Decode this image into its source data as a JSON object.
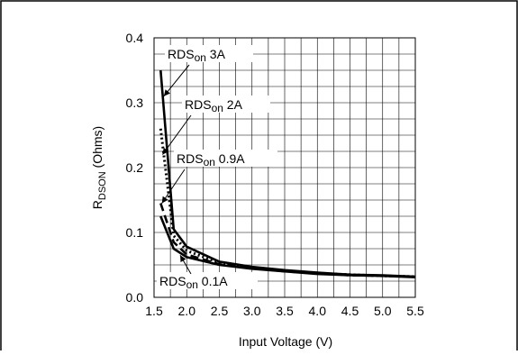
{
  "chart_data": {
    "type": "line",
    "title": "",
    "xlabel": "Input Voltage (V)",
    "ylabel": "RDSON (Ohms)",
    "ylabel_main": "R",
    "ylabel_sub": "DSON",
    "ylabel_rest": " (Ohms)",
    "xlim": [
      1.5,
      5.5
    ],
    "ylim": [
      0,
      0.4
    ],
    "x_ticks": [
      "1.5",
      "2.0",
      "2.5",
      "3.0",
      "3.5",
      "4.0",
      "4.5",
      "5.0",
      "5.5"
    ],
    "y_ticks": [
      "0.0",
      "0.1",
      "0.2",
      "0.3",
      "0.4"
    ],
    "grid": true,
    "series": [
      {
        "name": "RDSon 3A",
        "style": "solid",
        "x": [
          1.6,
          1.8,
          2.0,
          2.5,
          3.0,
          3.5,
          4.0,
          4.5,
          5.0,
          5.5
        ],
        "y": [
          0.35,
          0.105,
          0.078,
          0.055,
          0.047,
          0.042,
          0.038,
          0.035,
          0.034,
          0.032
        ]
      },
      {
        "name": "RDSon 2A",
        "style": "dotted",
        "x": [
          1.6,
          1.8,
          2.0,
          2.5,
          3.0,
          3.5,
          4.0,
          4.5,
          5.0,
          5.5
        ],
        "y": [
          0.26,
          0.095,
          0.072,
          0.053,
          0.046,
          0.041,
          0.037,
          0.035,
          0.033,
          0.032
        ]
      },
      {
        "name": "RDSon 0.9A",
        "style": "dashed",
        "x": [
          1.6,
          1.8,
          2.0,
          2.5,
          3.0,
          3.5,
          4.0,
          4.5,
          5.0,
          5.5
        ],
        "y": [
          0.145,
          0.085,
          0.066,
          0.051,
          0.045,
          0.04,
          0.037,
          0.034,
          0.033,
          0.032
        ]
      },
      {
        "name": "RDSon 0.1A",
        "style": "solid",
        "x": [
          1.6,
          1.8,
          2.0,
          2.5,
          3.0,
          3.5,
          4.0,
          4.5,
          5.0,
          5.5
        ],
        "y": [
          0.125,
          0.075,
          0.062,
          0.05,
          0.044,
          0.04,
          0.036,
          0.034,
          0.033,
          0.031
        ]
      }
    ],
    "annotations": [
      {
        "label": "RDSon 3A",
        "main": "RDS",
        "sub": "on",
        "rest": " 3A",
        "target_x": 1.65,
        "target_y": 0.31
      },
      {
        "label": "RDSon 2A",
        "main": "RDS",
        "sub": "on",
        "rest": " 2A",
        "target_x": 1.63,
        "target_y": 0.22
      },
      {
        "label": "RDSon 0.9A",
        "main": "RDS",
        "sub": "on",
        "rest": " 0.9A",
        "target_x": 1.62,
        "target_y": 0.145
      },
      {
        "label": "RDSon 0.1A",
        "main": "RDS",
        "sub": "on",
        "rest": " 0.1A",
        "target_x": 1.9,
        "target_y": 0.065
      }
    ]
  }
}
